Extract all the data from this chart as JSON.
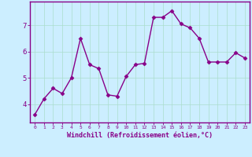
{
  "x": [
    0,
    1,
    2,
    3,
    4,
    5,
    6,
    7,
    8,
    9,
    10,
    11,
    12,
    13,
    14,
    15,
    16,
    17,
    18,
    19,
    20,
    21,
    22,
    23
  ],
  "y": [
    3.6,
    4.2,
    4.6,
    4.4,
    5.0,
    6.5,
    5.5,
    5.35,
    4.35,
    4.3,
    5.05,
    5.5,
    5.55,
    7.3,
    7.3,
    7.55,
    7.05,
    6.9,
    6.5,
    5.6,
    5.6,
    5.6,
    5.95,
    5.75
  ],
  "line_color": "#880088",
  "marker": "D",
  "marker_size": 2.5,
  "line_width": 1.0,
  "background_color": "#cceeff",
  "grid_color": "#aaddcc",
  "xlabel": "Windchill (Refroidissement éolien,°C)",
  "xlabel_color": "#880088",
  "ylabel_ticks": [
    4,
    5,
    6,
    7
  ],
  "xlim": [
    -0.5,
    23.5
  ],
  "ylim": [
    3.3,
    7.9
  ],
  "tick_color": "#880088",
  "spine_color": "#880088"
}
